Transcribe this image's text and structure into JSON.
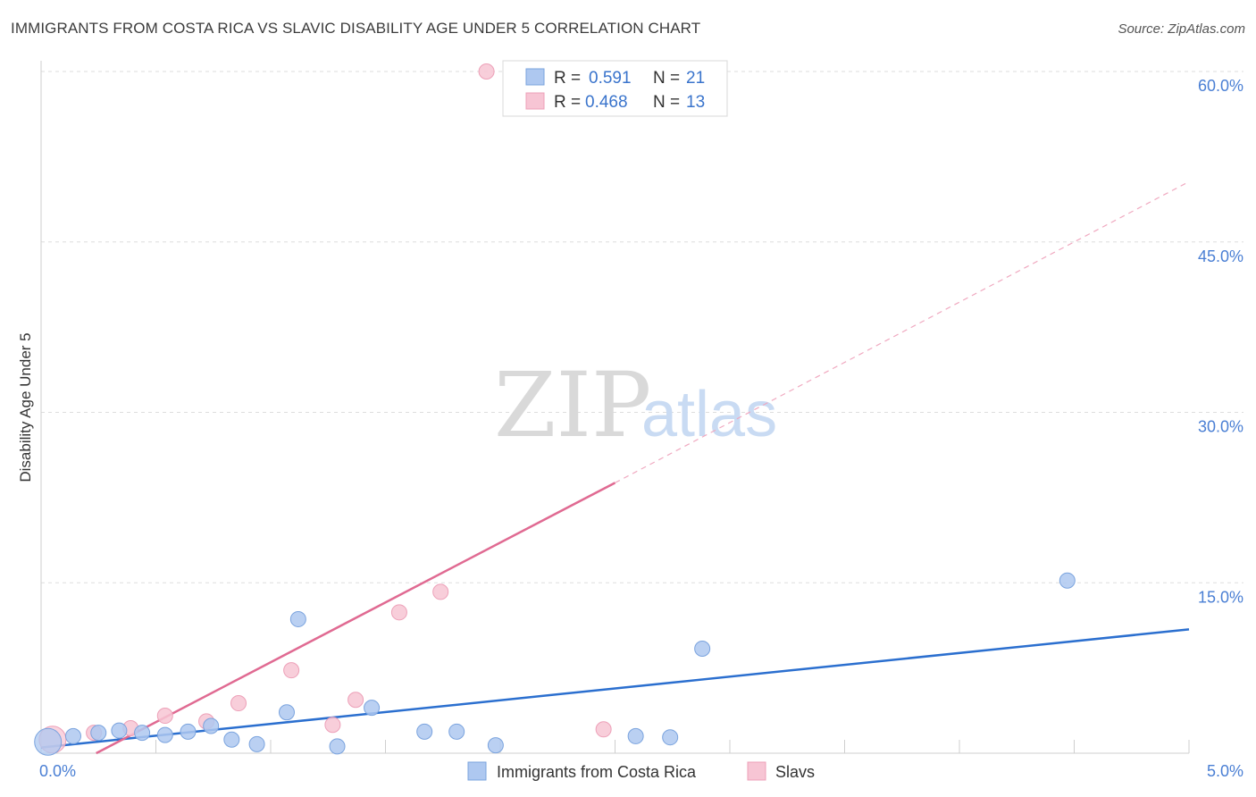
{
  "title": "IMMIGRANTS FROM COSTA RICA VS SLAVIC DISABILITY AGE UNDER 5 CORRELATION CHART",
  "source": "Source: ZipAtlas.com",
  "watermark": {
    "zip": "ZIP",
    "atlas": "atlas"
  },
  "legend": {
    "r_label": "R =",
    "n_label": "N =",
    "rows": [
      {
        "r": "0.591",
        "n": "21"
      },
      {
        "r": "0.468",
        "n": "13"
      }
    ]
  },
  "colors": {
    "blue_fill": "#aec8f0",
    "blue_stroke": "#7aa3de",
    "blue_line": "#2b6fcf",
    "pink_fill": "#f7c5d4",
    "pink_stroke": "#eda0b8",
    "pink_line": "#e06a92",
    "tick": "#4a7fd4",
    "grid": "#dddddd"
  },
  "chart_data": {
    "type": "scatter",
    "title": "IMMIGRANTS FROM COSTA RICA VS SLAVIC DISABILITY AGE UNDER 5 CORRELATION CHART",
    "xlabel": "",
    "ylabel": "Disability Age Under 5",
    "xlim": [
      0,
      5
    ],
    "ylim": [
      0,
      60
    ],
    "x_tick_labels": [
      "0.0%",
      "5.0%"
    ],
    "y_ticks": [
      15,
      30,
      45,
      60
    ],
    "y_tick_labels": [
      "15.0%",
      "30.0%",
      "45.0%",
      "60.0%"
    ],
    "series": [
      {
        "name": "Immigrants from Costa Rica",
        "color": "#aec8f0",
        "points": [
          {
            "x": 0.03,
            "y": 1.0
          },
          {
            "x": 0.14,
            "y": 1.5
          },
          {
            "x": 0.25,
            "y": 1.8
          },
          {
            "x": 0.34,
            "y": 2.0
          },
          {
            "x": 0.44,
            "y": 1.8
          },
          {
            "x": 0.54,
            "y": 1.6
          },
          {
            "x": 0.64,
            "y": 1.9
          },
          {
            "x": 0.74,
            "y": 2.4
          },
          {
            "x": 0.83,
            "y": 1.2
          },
          {
            "x": 0.94,
            "y": 0.8
          },
          {
            "x": 1.07,
            "y": 3.6
          },
          {
            "x": 1.12,
            "y": 11.8
          },
          {
            "x": 1.29,
            "y": 0.6
          },
          {
            "x": 1.44,
            "y": 4.0
          },
          {
            "x": 1.67,
            "y": 1.9
          },
          {
            "x": 1.81,
            "y": 1.9
          },
          {
            "x": 1.98,
            "y": 0.7
          },
          {
            "x": 2.59,
            "y": 1.5
          },
          {
            "x": 2.74,
            "y": 1.4
          },
          {
            "x": 2.88,
            "y": 9.2
          },
          {
            "x": 4.47,
            "y": 15.2
          }
        ],
        "trend": {
          "x": [
            0.0,
            5.0
          ],
          "y": [
            0.5,
            10.9
          ],
          "extrapolate": false
        }
      },
      {
        "name": "Slavs",
        "color": "#f7c5d4",
        "points": [
          {
            "x": 0.05,
            "y": 1.2
          },
          {
            "x": 0.23,
            "y": 1.8
          },
          {
            "x": 0.39,
            "y": 2.2
          },
          {
            "x": 0.54,
            "y": 3.3
          },
          {
            "x": 0.72,
            "y": 2.8
          },
          {
            "x": 0.86,
            "y": 4.4
          },
          {
            "x": 1.09,
            "y": 7.3
          },
          {
            "x": 1.27,
            "y": 2.5
          },
          {
            "x": 1.37,
            "y": 4.7
          },
          {
            "x": 1.56,
            "y": 12.4
          },
          {
            "x": 1.74,
            "y": 14.2
          },
          {
            "x": 1.94,
            "y": 60.0
          },
          {
            "x": 2.45,
            "y": 2.1
          }
        ],
        "trend": {
          "x": [
            0.24,
            2.5
          ],
          "y": [
            0.0,
            23.8
          ],
          "dashed_to": {
            "x": 5.0,
            "y": 50.3
          }
        }
      }
    ]
  }
}
